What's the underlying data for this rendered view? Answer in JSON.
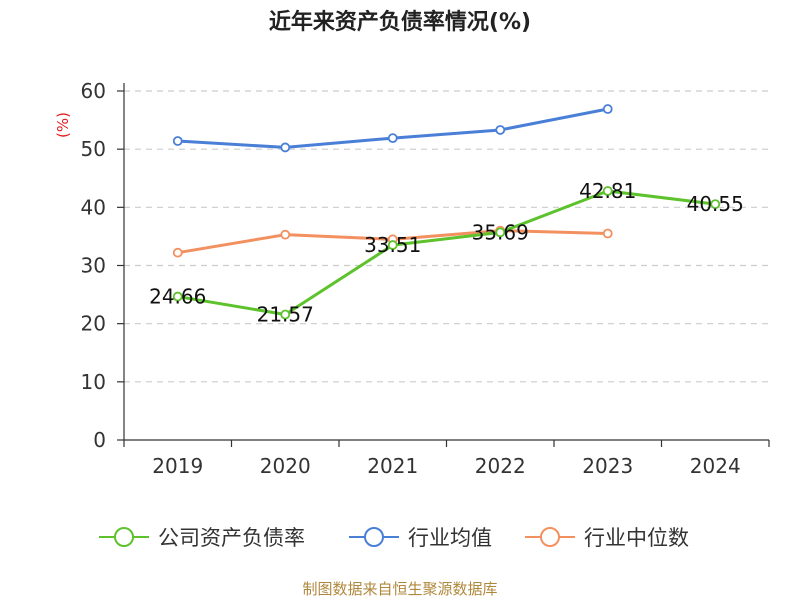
{
  "title": "近年来资产负债率情况(%)",
  "source": "制图数据来自恒生聚源数据库",
  "chart_data": {
    "type": "line",
    "title": "近年来资产负债率情况(%)",
    "ylabel": "(%)",
    "ylim": [
      0,
      60
    ],
    "yticks": [
      "0",
      "10",
      "20",
      "30",
      "40",
      "50",
      "60"
    ],
    "categories": [
      "2019",
      "2020",
      "2021",
      "2022",
      "2023",
      "2024"
    ],
    "grid": "horizontal-dashed",
    "legend_position": "bottom",
    "series": [
      {
        "name": "公司资产负债率",
        "color": "#5dc22b",
        "values": [
          24.66,
          21.57,
          33.51,
          35.69,
          42.81,
          40.55
        ],
        "labels": [
          "24.66",
          "21.57",
          "33.51",
          "35.69",
          "42.81",
          "40.55"
        ]
      },
      {
        "name": "行业均值",
        "color": "#4a7fd8",
        "values": [
          51.4,
          50.3,
          51.9,
          53.3,
          56.9,
          null
        ]
      },
      {
        "name": "行业中位数",
        "color": "#f39060",
        "values": [
          32.2,
          35.3,
          34.5,
          36.0,
          35.5,
          null
        ]
      }
    ]
  }
}
